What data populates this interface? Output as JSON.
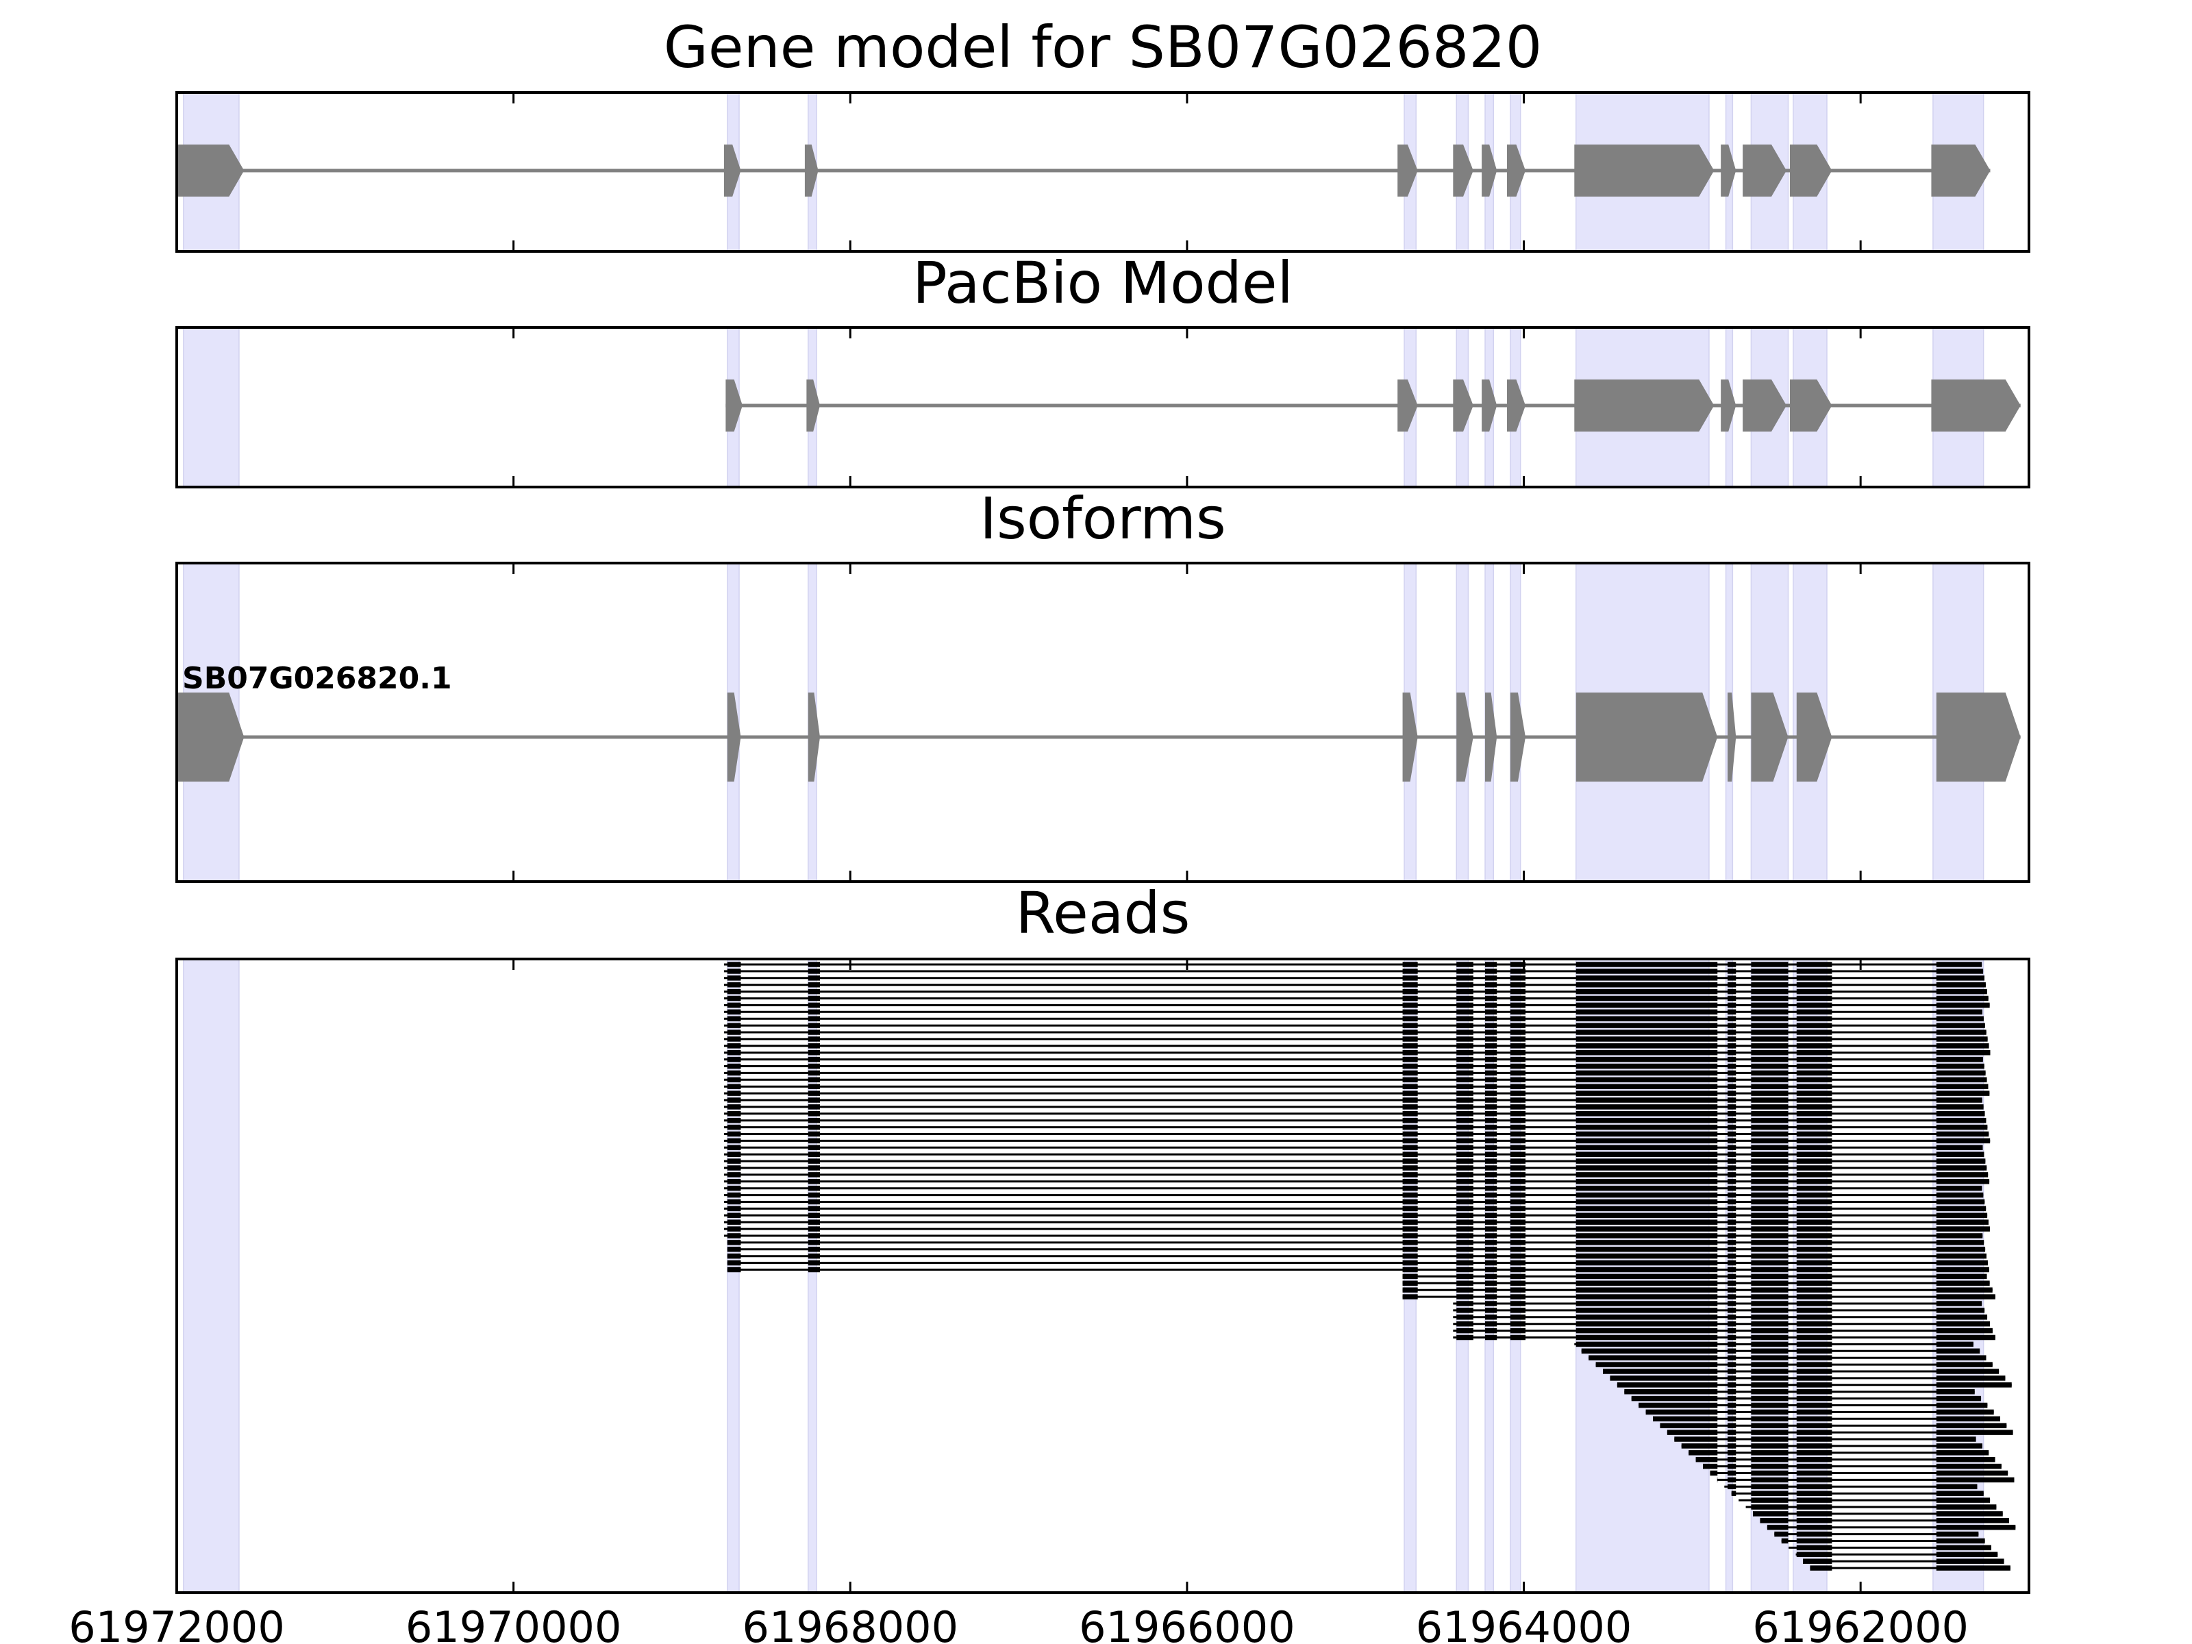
{
  "chart_data": {
    "type": "gene_track",
    "x_axis": {
      "reversed": true,
      "xlim": [
        61972000,
        61961000
      ],
      "ticks": [
        61972000,
        61970000,
        61968000,
        61966000,
        61964000,
        61962000
      ],
      "tick_labels": [
        "61972000",
        "61970000",
        "61968000",
        "61966000",
        "61964000",
        "61962000"
      ]
    },
    "highlight_color": "#e4e4fb",
    "feature_color": "#808080",
    "read_color": "#000000",
    "exon_highlights": [
      [
        61971960,
        61971630
      ],
      [
        61968730,
        61968660
      ],
      [
        61968250,
        61968200
      ],
      [
        61964710,
        61964640
      ],
      [
        61964400,
        61964330
      ],
      [
        61964230,
        61964180
      ],
      [
        61964080,
        61964020
      ],
      [
        61963690,
        61962900
      ],
      [
        61962800,
        61962760
      ],
      [
        61962650,
        61962430
      ],
      [
        61962400,
        61962200
      ],
      [
        61961570,
        61961270
      ]
    ],
    "panels": [
      {
        "title": "Gene model for SB07G026820",
        "kind": "model",
        "strand": "-",
        "label": "",
        "exons": [
          [
            61972000,
            61971600
          ],
          [
            61968750,
            61968650
          ],
          [
            61968270,
            61968190
          ],
          [
            61964750,
            61964630
          ],
          [
            61964420,
            61964300
          ],
          [
            61964250,
            61964160
          ],
          [
            61964100,
            61963990
          ],
          [
            61963700,
            61962870
          ],
          [
            61962830,
            61962740
          ],
          [
            61962700,
            61962440
          ],
          [
            61962420,
            61962170
          ],
          [
            61961580,
            61961230
          ]
        ]
      },
      {
        "title": "PacBio Model",
        "kind": "model",
        "strand": "-",
        "label": "",
        "exons": [
          [
            61968740,
            61968640
          ],
          [
            61968260,
            61968180
          ],
          [
            61964750,
            61964630
          ],
          [
            61964420,
            61964300
          ],
          [
            61964250,
            61964160
          ],
          [
            61964100,
            61963990
          ],
          [
            61963700,
            61962870
          ],
          [
            61962830,
            61962740
          ],
          [
            61962700,
            61962440
          ],
          [
            61962420,
            61962170
          ],
          [
            61961580,
            61961050
          ]
        ]
      },
      {
        "title": "Isoforms",
        "kind": "isoforms",
        "strand": "-",
        "label": "SB07G026820.1",
        "exons": [
          [
            61972000,
            61971600
          ],
          [
            61968730,
            61968650
          ],
          [
            61968250,
            61968180
          ],
          [
            61964720,
            61964630
          ],
          [
            61964400,
            61964300
          ],
          [
            61964230,
            61964160
          ],
          [
            61964080,
            61963990
          ],
          [
            61963690,
            61962850
          ],
          [
            61962790,
            61962740
          ],
          [
            61962650,
            61962430
          ],
          [
            61962380,
            61962170
          ],
          [
            61961550,
            61961050
          ]
        ]
      },
      {
        "title": "Reads",
        "kind": "reads",
        "read_count": 90,
        "groups": {
          "full_length": {
            "rows": 46,
            "start": 61968750,
            "end_range": [
              61961280,
              61961230
            ]
          },
          "from_exon_3": {
            "rows": 4,
            "start": 61964720,
            "end_range": [
              61961250,
              61961200
            ]
          },
          "from_exon_4": {
            "rows": 6,
            "start": 61964420,
            "end_range": [
              61961280,
              61961200
            ]
          },
          "partial_3prime": {
            "rows": 34,
            "start_range": [
              61963700,
              61962300
            ],
            "end_range": [
              61961330,
              61961080
            ]
          }
        }
      }
    ]
  }
}
